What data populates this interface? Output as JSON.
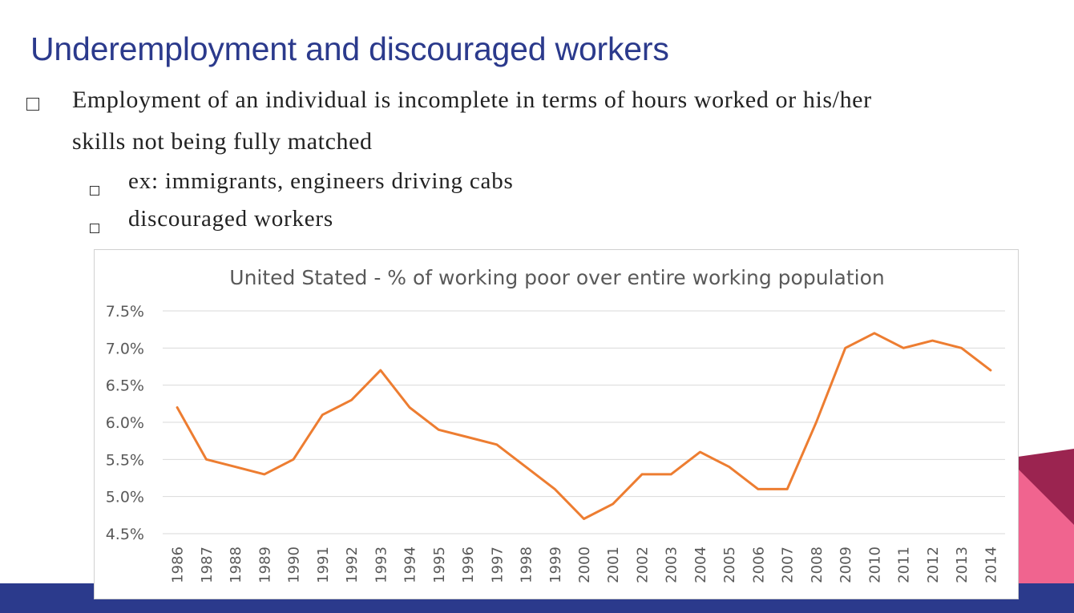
{
  "slide": {
    "title": "Underemployment and discouraged workers",
    "bullets": [
      {
        "level": 1,
        "lines": [
          "Employment of an individual is incomplete in terms of hours worked or his/her",
          "skills not being fully matched"
        ]
      },
      {
        "level": 2,
        "text": "ex: immigrants, engineers driving cabs"
      },
      {
        "level": 2,
        "text": "discouraged workers"
      }
    ]
  },
  "colors": {
    "title": "#2b3a8c",
    "bottom_bar": "#2b3a8c",
    "corner_dark": "#9b2450",
    "corner_light": "#f0648f",
    "line": "#ed7d31",
    "grid": "#d9d9d9",
    "axis_text": "#595959"
  },
  "chart_data": {
    "type": "line",
    "title": "United Stated - % of working poor over entire working population",
    "xlabel": "",
    "ylabel": "",
    "x": [
      "1986",
      "1987",
      "1988",
      "1989",
      "1990",
      "1991",
      "1992",
      "1993",
      "1994",
      "1995",
      "1996",
      "1997",
      "1998",
      "1999",
      "2000",
      "2001",
      "2002",
      "2003",
      "2004",
      "2005",
      "2006",
      "2007",
      "2008",
      "2009",
      "2010",
      "2011",
      "2012",
      "2013",
      "2014"
    ],
    "series": [
      {
        "values": [
          6.2,
          5.5,
          5.4,
          5.3,
          5.5,
          6.1,
          6.3,
          6.7,
          6.2,
          5.9,
          5.8,
          5.7,
          5.4,
          5.1,
          4.7,
          4.9,
          5.3,
          5.3,
          5.6,
          5.4,
          5.1,
          5.1,
          6.0,
          7.0,
          7.2,
          7.0,
          7.1,
          7.0,
          6.7
        ]
      }
    ],
    "yticks": [
      "4.5%",
      "5.0%",
      "5.5%",
      "6.0%",
      "6.5%",
      "7.0%",
      "7.5%"
    ],
    "ylim": [
      4.5,
      7.5
    ],
    "grid": true,
    "legend": "none"
  }
}
